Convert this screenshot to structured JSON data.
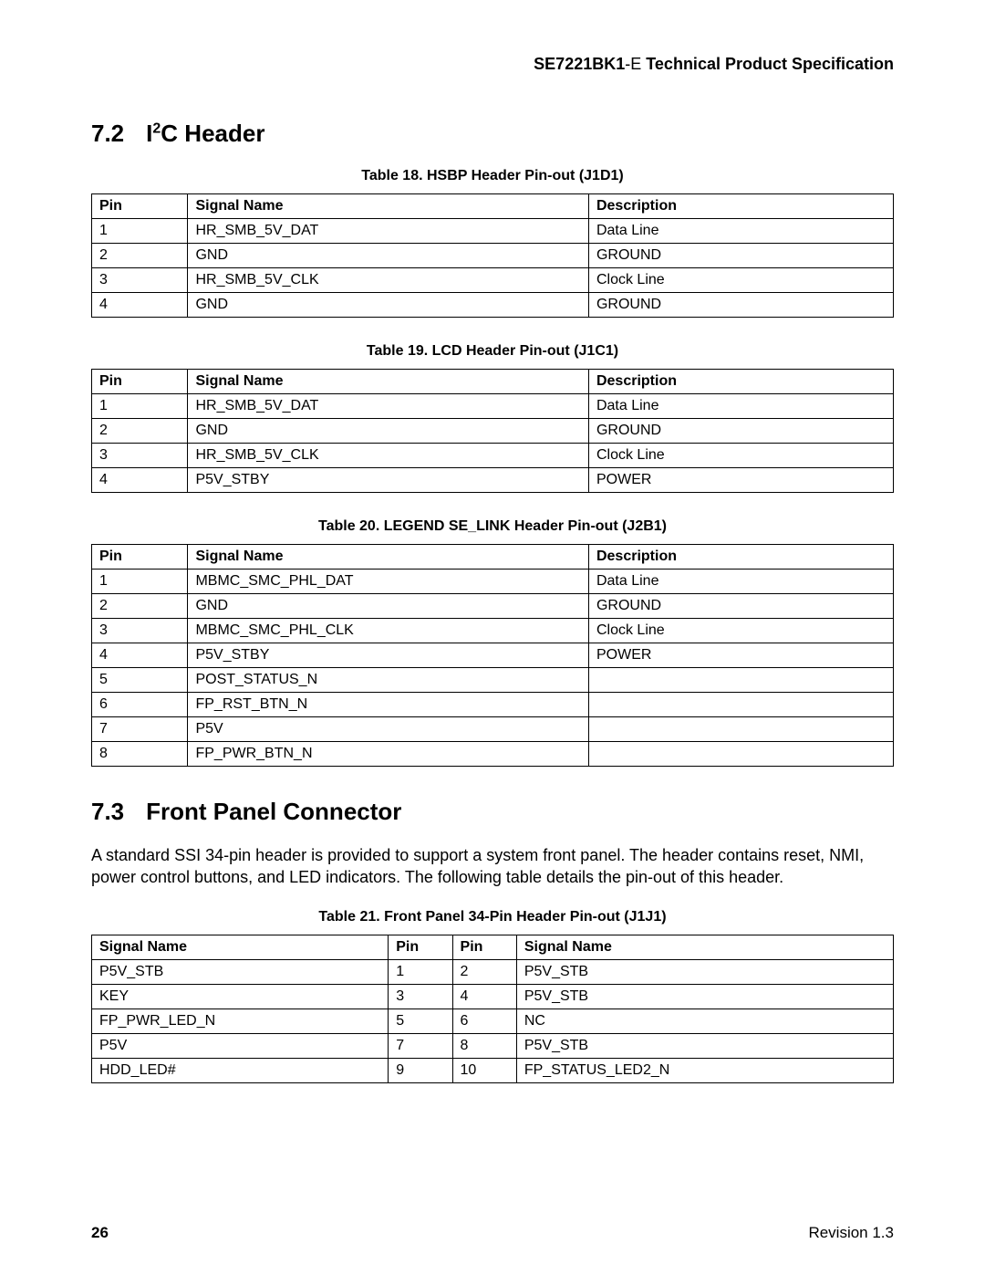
{
  "header": {
    "product": "SE7221BK1",
    "suffix": "-E ",
    "title_rest": "Technical Product Specification"
  },
  "sections": {
    "s72": {
      "num": "7.2",
      "title_pre": "I",
      "title_sup": "2",
      "title_post": "C Header"
    },
    "s73": {
      "num": "7.3",
      "title": "Front Panel Connector",
      "body": "A standard SSI 34-pin header is provided to support a system front panel. The header contains reset, NMI, power control buttons, and LED indicators. The following table details the pin-out of this header."
    }
  },
  "tables": {
    "t18": {
      "caption": "Table 18.  HSBP Header Pin-out (J1D1)",
      "columns": [
        "Pin",
        "Signal Name",
        "Description"
      ],
      "rows": [
        [
          "1",
          "HR_SMB_5V_DAT",
          "Data Line"
        ],
        [
          "2",
          "GND",
          "GROUND"
        ],
        [
          "3",
          "HR_SMB_5V_CLK",
          "Clock Line"
        ],
        [
          "4",
          "GND",
          "GROUND"
        ]
      ]
    },
    "t19": {
      "caption": "Table 19.  LCD Header Pin-out (J1C1)",
      "columns": [
        "Pin",
        "Signal Name",
        "Description"
      ],
      "rows": [
        [
          "1",
          "HR_SMB_5V_DAT",
          "Data Line"
        ],
        [
          "2",
          "GND",
          "GROUND"
        ],
        [
          "3",
          "HR_SMB_5V_CLK",
          "Clock Line"
        ],
        [
          "4",
          "P5V_STBY",
          "POWER"
        ]
      ]
    },
    "t20": {
      "caption": "Table 20.  LEGEND SE_LINK Header Pin-out (J2B1)",
      "columns": [
        "Pin",
        "Signal Name",
        "Description"
      ],
      "rows": [
        [
          "1",
          "MBMC_SMC_PHL_DAT",
          "Data Line"
        ],
        [
          "2",
          "GND",
          "GROUND"
        ],
        [
          "3",
          "MBMC_SMC_PHL_CLK",
          "Clock Line"
        ],
        [
          "4",
          "P5V_STBY",
          "POWER"
        ],
        [
          "5",
          "POST_STATUS_N",
          ""
        ],
        [
          "6",
          "FP_RST_BTN_N",
          ""
        ],
        [
          "7",
          "P5V",
          ""
        ],
        [
          "8",
          "FP_PWR_BTN_N",
          ""
        ]
      ]
    },
    "t21": {
      "caption": "Table 21.  Front Panel 34-Pin Header Pin-out (J1J1)",
      "columns": [
        "Signal Name",
        "Pin",
        "Pin",
        "Signal Name"
      ],
      "rows": [
        [
          "P5V_STB",
          "1",
          "2",
          "P5V_STB"
        ],
        [
          "KEY",
          "3",
          "4",
          "P5V_STB"
        ],
        [
          "FP_PWR_LED_N",
          "5",
          "6",
          "NC"
        ],
        [
          "P5V",
          "7",
          "8",
          "P5V_STB"
        ],
        [
          "HDD_LED#",
          "9",
          "10",
          "FP_STATUS_LED2_N"
        ]
      ]
    }
  },
  "footer": {
    "page": "26",
    "rev": "Revision 1.3"
  },
  "style": {
    "text_color": "#000000",
    "background_color": "#ffffff",
    "border_color": "#000000",
    "body_fontsize": 18,
    "table_fontsize": 16,
    "h2_fontsize": 26,
    "caption_fontsize": 16
  }
}
